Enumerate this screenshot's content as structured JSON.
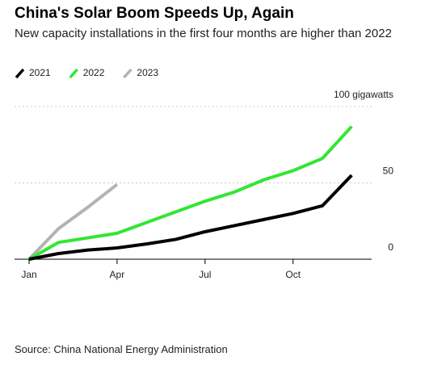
{
  "chart_data": {
    "type": "line",
    "title": "China's Solar Boom Speeds Up, Again",
    "subtitle": "New capacity installations in the first four months are higher than 2022",
    "source": "Source: China National Energy Administration",
    "categories": [
      "Jan",
      null,
      null,
      "Apr",
      null,
      null,
      "Jul",
      null,
      null,
      "Oct",
      null,
      null
    ],
    "series": [
      {
        "name": "2021",
        "color": "#000000",
        "values": [
          0,
          3.7,
          6,
          7.4,
          10,
          13,
          18,
          22,
          26,
          30,
          35,
          55
        ]
      },
      {
        "name": "2022",
        "color": "#33e633",
        "values": [
          0,
          11,
          14,
          17,
          24,
          31,
          38,
          44,
          52,
          58,
          66,
          87
        ]
      },
      {
        "name": "2023",
        "color": "#b3b3b3",
        "values": [
          0,
          20,
          34,
          49,
          null,
          null,
          null,
          null,
          null,
          null,
          null,
          null
        ]
      }
    ],
    "ylim": [
      0,
      100
    ],
    "yticks": [
      0,
      50,
      {
        "value": 100,
        "label": "100 gigawatts"
      }
    ],
    "grid": true
  }
}
